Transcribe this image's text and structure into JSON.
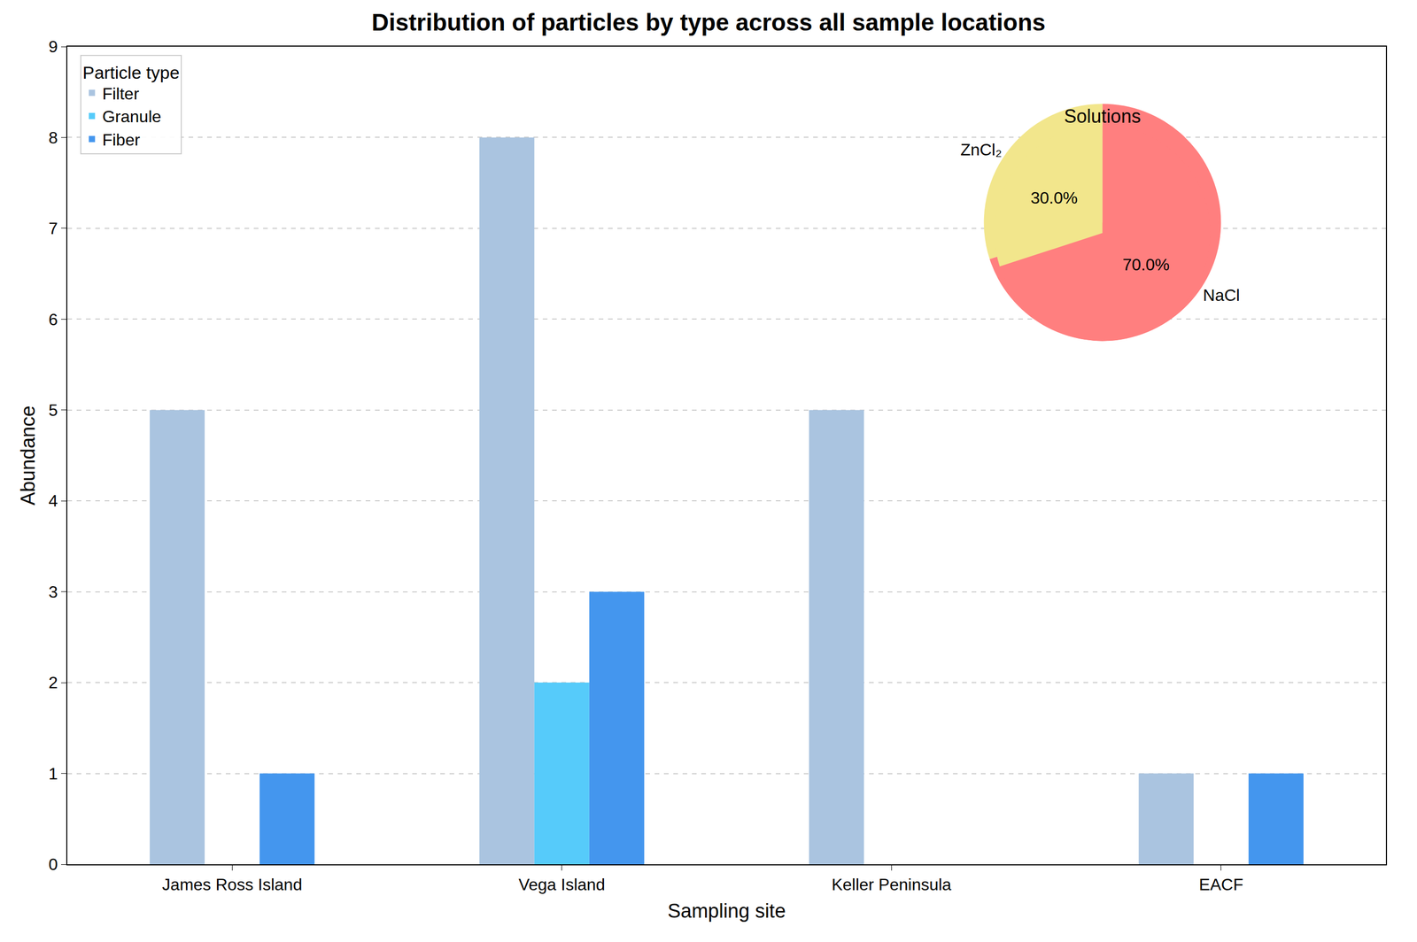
{
  "chart_data": [
    {
      "type": "bar",
      "title": "Distribution of particles by type across all sample locations",
      "x_label": "Sampling site",
      "y_label": "Abundance",
      "categories": [
        "James Ross Island",
        "Vega Island",
        "Keller Peninsula",
        "EACF"
      ],
      "series": [
        {
          "name": "Filter",
          "color": "#aac4e0",
          "values": [
            5,
            8,
            5,
            1
          ]
        },
        {
          "name": "Granule",
          "color": "#56cbfa",
          "values": [
            0,
            2,
            0,
            0
          ]
        },
        {
          "name": "Fiber",
          "color": "#4496ee",
          "values": [
            1,
            3,
            0,
            1
          ]
        }
      ],
      "ylim": [
        0,
        9
      ],
      "yticks": [
        0,
        1,
        2,
        3,
        4,
        5,
        6,
        7,
        8,
        9
      ],
      "grid": true,
      "legend": "upper left",
      "legend_title": "Particle type"
    },
    {
      "type": "pie",
      "title": "Solutions",
      "categories": [
        "NaCl",
        "ZnCl₂"
      ],
      "values": [
        70,
        30
      ],
      "value_labels": [
        "70.0%",
        "30.0%"
      ],
      "colors": [
        "#ff7f7f",
        "#f2e68c"
      ],
      "data_labels": true
    }
  ]
}
